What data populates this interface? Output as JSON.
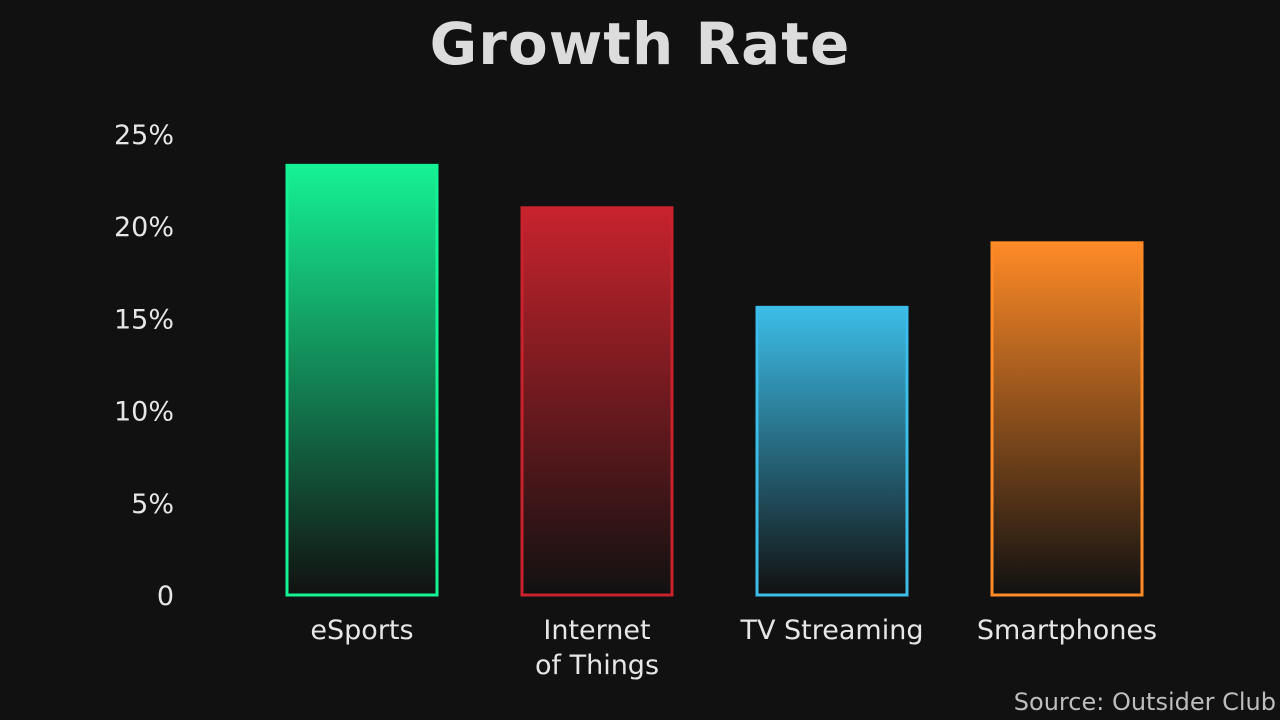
{
  "title": "Growth Rate",
  "source": "Source: Outsider Club",
  "chart_data": {
    "type": "bar",
    "title": "Growth Rate",
    "xlabel": "",
    "ylabel": "",
    "ylim": [
      0,
      25
    ],
    "yticks": [
      {
        "value": 0,
        "label": "0"
      },
      {
        "value": 5,
        "label": "5%"
      },
      {
        "value": 10,
        "label": "10%"
      },
      {
        "value": 15,
        "label": "15%"
      },
      {
        "value": 20,
        "label": "20%"
      },
      {
        "value": 25,
        "label": "25%"
      }
    ],
    "grid": false,
    "legend": "none",
    "categories": [
      {
        "lines": [
          "eSports"
        ],
        "name": "eSports"
      },
      {
        "lines": [
          "Internet",
          "of Things"
        ],
        "name": "Internet of Things"
      },
      {
        "lines": [
          "TV Streaming"
        ],
        "name": "TV Streaming"
      },
      {
        "lines": [
          "Smartphones"
        ],
        "name": "Smartphones"
      }
    ],
    "values": [
      23.3,
      21.0,
      15.6,
      19.1
    ],
    "colors": [
      "#15f295",
      "#c8232d",
      "#3cbde8",
      "#ff8a26"
    ]
  }
}
